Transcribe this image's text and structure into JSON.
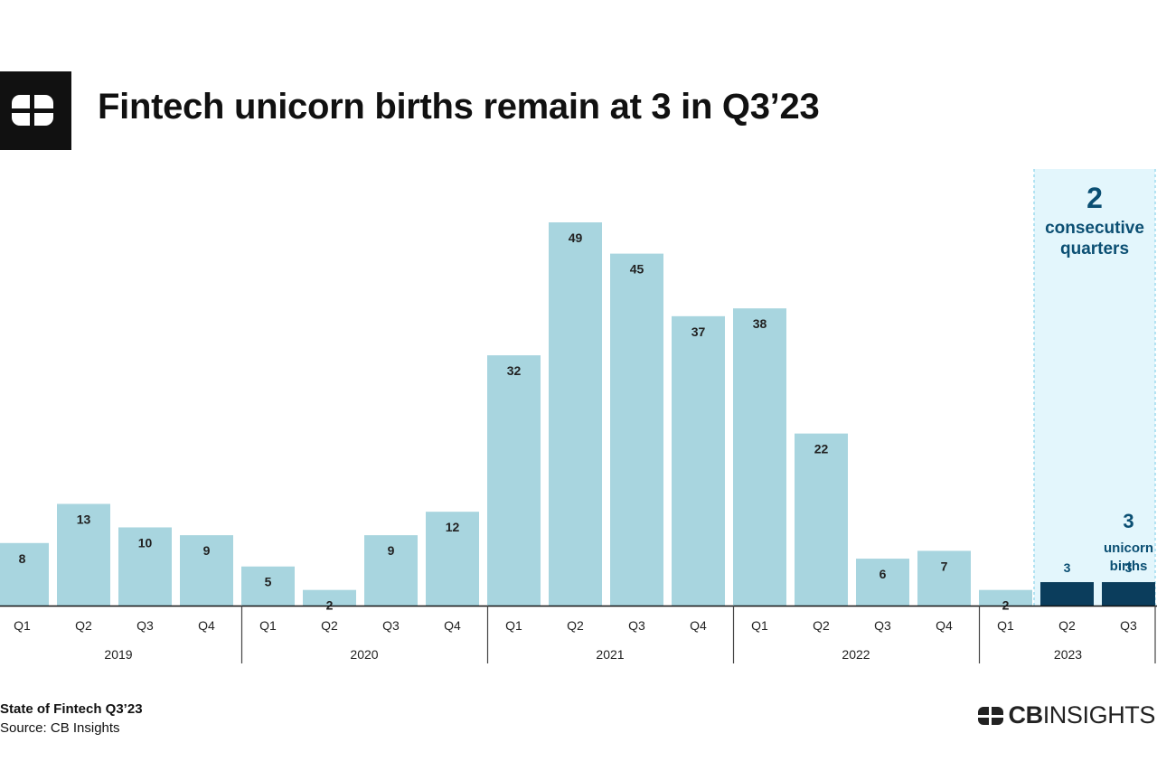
{
  "header": {
    "title": "Fintech unicorn births remain at 3 in Q3’23"
  },
  "icons": {
    "logo": "cb-insights-logo-icon",
    "brand_logo": "cb-insights-wordmark-icon"
  },
  "colors": {
    "bar": "#a8d5df",
    "highlight_bar": "#0b3d5c",
    "highlight_panel": "#e3f6fc",
    "annotation_text": "#0b4f73",
    "axis": "#333333"
  },
  "chart_data": {
    "type": "bar",
    "title": "Fintech unicorn births remain at 3 in Q3’23",
    "xlabel": "",
    "ylabel": "",
    "ylim": [
      0,
      49
    ],
    "grid": false,
    "groups": [
      {
        "label": "2019",
        "quarters": [
          "Q1",
          "Q2",
          "Q3",
          "Q4"
        ],
        "values": [
          8,
          13,
          10,
          9
        ]
      },
      {
        "label": "2020",
        "quarters": [
          "Q1",
          "Q2",
          "Q3",
          "Q4"
        ],
        "values": [
          5,
          2,
          9,
          12
        ]
      },
      {
        "label": "2021",
        "quarters": [
          "Q1",
          "Q2",
          "Q3",
          "Q4"
        ],
        "values": [
          32,
          49,
          45,
          37
        ]
      },
      {
        "label": "2022",
        "quarters": [
          "Q1",
          "Q2",
          "Q3",
          "Q4"
        ],
        "values": [
          38,
          22,
          6,
          7
        ]
      },
      {
        "label": "2023",
        "quarters": [
          "Q1",
          "Q2",
          "Q3"
        ],
        "values": [
          2,
          3,
          3
        ]
      }
    ],
    "highlighted": [
      {
        "group": "2023",
        "quarter": "Q2"
      },
      {
        "group": "2023",
        "quarter": "Q3"
      }
    ],
    "annotations": {
      "panel_number": "2",
      "panel_line1": "consecutive",
      "panel_line2": "quarters",
      "last_number": "3",
      "last_line1": "unicorn",
      "last_line2": "births"
    }
  },
  "footer": {
    "report": "State of Fintech Q3’23",
    "source": "Source: CB Insights"
  },
  "brand": {
    "prefix": "CB",
    "suffix": "INSIGHTS"
  }
}
